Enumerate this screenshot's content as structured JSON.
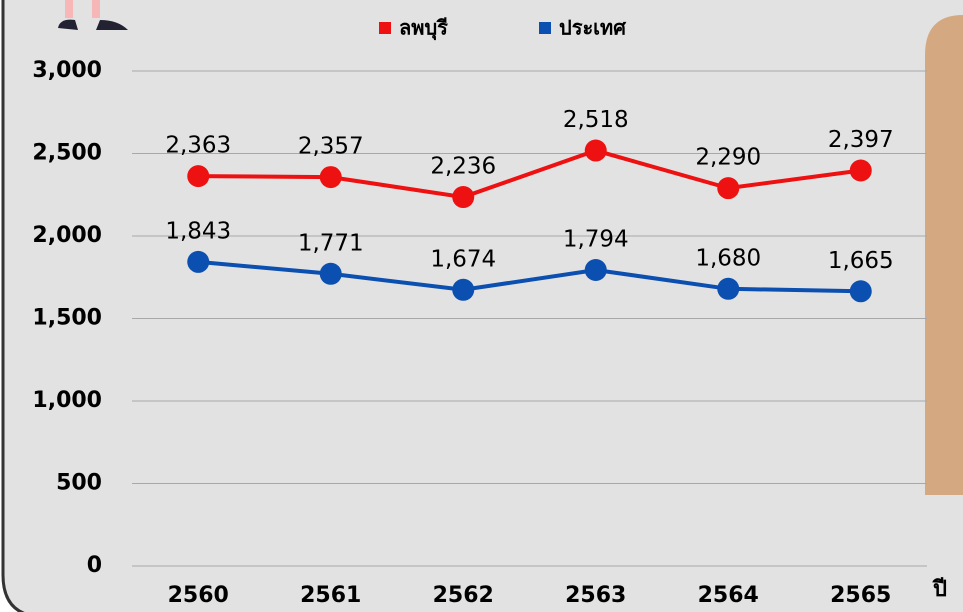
{
  "chart_data": {
    "type": "line",
    "categories": [
      "2560",
      "2561",
      "2562",
      "2563",
      "2564",
      "2565"
    ],
    "x_label": "ปี",
    "series": [
      {
        "name": "ลพบุรี",
        "color": "#ee1111",
        "values": [
          2363,
          2357,
          2236,
          2518,
          2290,
          2397
        ],
        "value_labels": [
          "2,363",
          "2,357",
          "2,236",
          "2,518",
          "2,290",
          "2,397"
        ]
      },
      {
        "name": "ประเทศ",
        "color": "#0b4fb0",
        "values": [
          1843,
          1771,
          1674,
          1794,
          1680,
          1665
        ],
        "value_labels": [
          "1,843",
          "1,771",
          "1,674",
          "1,794",
          "1,680",
          "1,665"
        ]
      }
    ],
    "ylim": [
      0,
      3000
    ],
    "yticks": [
      0,
      500,
      {
        "value": 1000,
        "label": "1,000"
      },
      {
        "value": 1500,
        "label": "1,500"
      },
      {
        "value": 2000,
        "label": "2,000"
      },
      {
        "value": 2500,
        "label": "2,500"
      },
      {
        "value": 3000,
        "label": "3,000"
      }
    ],
    "grid": true,
    "legend": "top"
  }
}
